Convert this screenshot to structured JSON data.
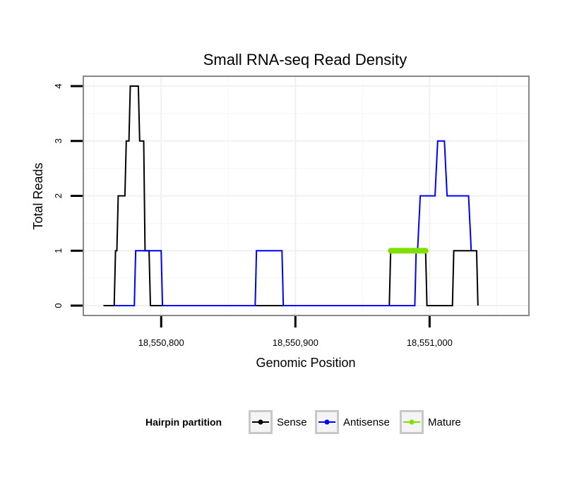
{
  "chart_data": {
    "type": "line",
    "title": "Small RNA-seq Read Density",
    "xlabel": "Genomic Position",
    "ylabel": "Total Reads",
    "xlim": [
      18550742,
      18551074
    ],
    "ylim": [
      -0.18,
      4.18
    ],
    "x_ticks": [
      {
        "value": 18550800,
        "label": "18,550,800"
      },
      {
        "value": 18550900,
        "label": "18,550,900"
      },
      {
        "value": 18551000,
        "label": "18,551,000"
      }
    ],
    "y_ticks": [
      {
        "value": 0,
        "label": "0"
      },
      {
        "value": 1,
        "label": "1"
      },
      {
        "value": 2,
        "label": "2"
      },
      {
        "value": 3,
        "label": "3"
      },
      {
        "value": 4,
        "label": "4"
      }
    ],
    "grid": true,
    "legend": {
      "title": "Hairpin partition",
      "position": "bottom",
      "items": [
        {
          "label": "Sense",
          "color": "#000000"
        },
        {
          "label": "Antisense",
          "color": "#0000ff"
        },
        {
          "label": "Mature",
          "color": "#7fe000"
        }
      ]
    },
    "series": [
      {
        "name": "Sense",
        "color": "#000000",
        "x": [
          18550757,
          18550765,
          18550766,
          18550767,
          18550768,
          18550773,
          18550774,
          18550776,
          18550777,
          18550778,
          18550781,
          18550783,
          18550784,
          18550787,
          18550788,
          18550791,
          18550792,
          18550970,
          18550971,
          18550997,
          18550998,
          18551017,
          18551018,
          18551035,
          18551036
        ],
        "y": [
          0,
          0,
          1,
          1,
          2,
          2,
          3,
          3,
          4,
          4,
          4,
          4,
          3,
          3,
          1,
          1,
          0,
          0,
          1,
          1,
          0,
          0,
          1,
          1,
          0
        ]
      },
      {
        "name": "Antisense",
        "color": "#0000ff",
        "x": [
          18550765,
          18550780,
          18550781,
          18550800,
          18550801,
          18550870,
          18550871,
          18550890,
          18550891,
          18550988,
          18550989,
          18550990,
          18550991,
          18550993,
          18551004,
          18551006,
          18551011,
          18551013,
          18551017,
          18551018,
          18551029,
          18551031
        ],
        "y": [
          0,
          0,
          1,
          1,
          0,
          0,
          1,
          1,
          0,
          0,
          0,
          1,
          1,
          2,
          2,
          3,
          3,
          2,
          2,
          2,
          2,
          1
        ]
      },
      {
        "name": "Mature",
        "color": "#7fe000",
        "x": [
          18550971,
          18550997
        ],
        "y": [
          1,
          1
        ]
      }
    ]
  }
}
